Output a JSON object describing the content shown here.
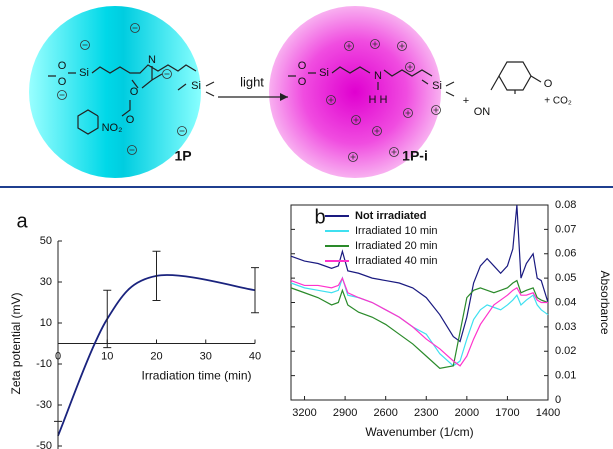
{
  "scheme": {
    "arrow_label": "light",
    "reactant_label": "1P",
    "product_label": "1P-i",
    "reactant_atoms": [
      "O",
      "O",
      "Si",
      "N",
      "O",
      "O",
      "NO₂",
      "Si"
    ],
    "product_atoms": [
      "O",
      "O",
      "Si",
      "N",
      "H H",
      "Si"
    ],
    "plus": "+",
    "byproduct_atoms": [
      "ON",
      "O"
    ],
    "co2": "+ CO₂"
  },
  "chart_data": [
    {
      "type": "line",
      "panel_label": "a",
      "xlabel": "Irradiation time (min)",
      "ylabel": "Zeta potential (mV)",
      "x": [
        0,
        10,
        20,
        40
      ],
      "smooth": true,
      "series": [
        {
          "color": "#1a237e",
          "values": [
            -45,
            12,
            33,
            26
          ],
          "errors": [
            7,
            14,
            12,
            11
          ]
        }
      ],
      "xlim": [
        0,
        40
      ],
      "xticks": [
        0,
        10,
        20,
        30,
        40
      ],
      "ylim": [
        -50,
        50
      ],
      "yticks": [
        -50,
        -30,
        -10,
        10,
        30,
        50
      ]
    },
    {
      "type": "line",
      "panel_label": "b",
      "xlabel": "Wavenumber (1/cm)",
      "ylabel": "Absorbance",
      "frame": true,
      "legend": "upper left",
      "x": [
        3300,
        3200,
        3100,
        3000,
        2950,
        2920,
        2880,
        2800,
        2700,
        2600,
        2500,
        2400,
        2300,
        2200,
        2100,
        2050,
        2000,
        1950,
        1900,
        1850,
        1800,
        1750,
        1700,
        1660,
        1630,
        1600,
        1560,
        1510,
        1480,
        1450,
        1400
      ],
      "series": [
        {
          "name": "Not irradiated",
          "color": "#1a1a80",
          "axis": "y2",
          "values": [
            0.059,
            0.057,
            0.056,
            0.054,
            0.055,
            0.061,
            0.053,
            0.052,
            0.05,
            0.049,
            0.048,
            0.046,
            0.042,
            0.035,
            0.026,
            0.024,
            0.034,
            0.048,
            0.055,
            0.058,
            0.055,
            0.052,
            0.055,
            0.062,
            0.08,
            0.05,
            0.056,
            0.06,
            0.05,
            0.049,
            0.04
          ]
        },
        {
          "name": "Irradiated 10 min",
          "color": "#3fe0f0",
          "axis": "y2",
          "values": [
            0.048,
            0.046,
            0.045,
            0.044,
            0.045,
            0.05,
            0.043,
            0.042,
            0.04,
            0.037,
            0.034,
            0.03,
            0.027,
            0.019,
            0.014,
            0.016,
            0.025,
            0.033,
            0.037,
            0.039,
            0.038,
            0.037,
            0.039,
            0.041,
            0.043,
            0.039,
            0.041,
            0.043,
            0.039,
            0.037,
            0.035
          ]
        },
        {
          "name": "Irradiated 20 min",
          "color": "#2a8a2a",
          "axis": "y2",
          "values": [
            0.046,
            0.044,
            0.042,
            0.039,
            0.04,
            0.045,
            0.039,
            0.036,
            0.034,
            0.031,
            0.027,
            0.023,
            0.018,
            0.013,
            0.014,
            0.028,
            0.042,
            0.045,
            0.046,
            0.045,
            0.044,
            0.045,
            0.046,
            0.048,
            0.049,
            0.044,
            0.045,
            0.046,
            0.042,
            0.041,
            0.04
          ]
        },
        {
          "name": "Irradiated 40 min",
          "color": "#ff33cc",
          "axis": "y2",
          "values": [
            0.049,
            0.047,
            0.047,
            0.046,
            0.047,
            0.05,
            0.044,
            0.042,
            0.04,
            0.037,
            0.034,
            0.03,
            0.025,
            0.021,
            0.016,
            0.014,
            0.018,
            0.025,
            0.031,
            0.035,
            0.039,
            0.041,
            0.043,
            0.045,
            0.046,
            0.043,
            0.043,
            0.044,
            0.041,
            0.04,
            0.04
          ]
        }
      ],
      "xlim": [
        3300,
        1400
      ],
      "xticks": [
        3200,
        2900,
        2600,
        2300,
        2000,
        1700,
        1400
      ],
      "y2lim": [
        0,
        0.08
      ],
      "y2ticks": [
        0,
        0.01,
        0.02,
        0.03,
        0.04,
        0.05,
        0.06,
        0.07,
        0.08
      ]
    }
  ]
}
